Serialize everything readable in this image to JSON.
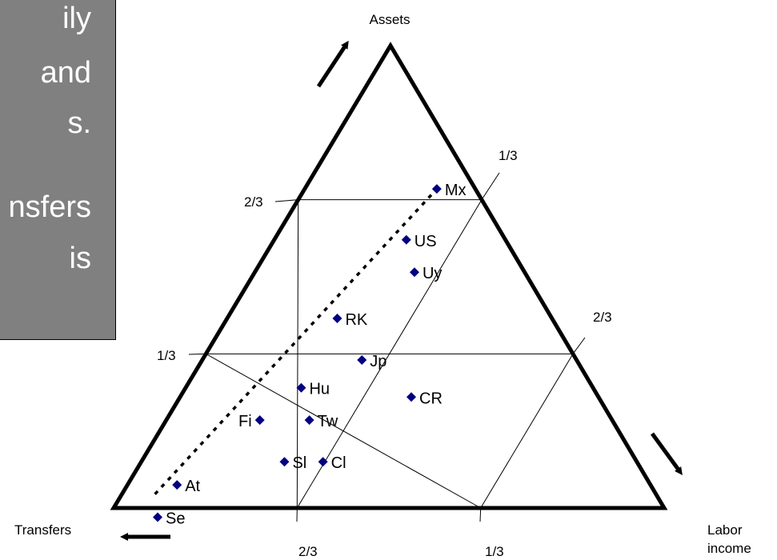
{
  "text_box": {
    "lines": [
      "ily",
      "and",
      "s.",
      "",
      "nsfers",
      "is"
    ]
  },
  "chart_data": {
    "type": "ternary-scatter",
    "vertex_labels": {
      "top": "Assets",
      "bottom_left": "Transfers",
      "bottom_right": "Labor income"
    },
    "tick_labels": {
      "left_edge": [
        "2/3",
        "1/3"
      ],
      "right_edge": [
        "1/3",
        "2/3"
      ],
      "bottom_edge": [
        "2/3",
        "1/3"
      ]
    },
    "grid_fractions": [
      0.3333,
      0.6667
    ],
    "points": [
      {
        "label": "Mx",
        "assets": 0.69,
        "transfers": 0.07,
        "labor": 0.24
      },
      {
        "label": "US",
        "assets": 0.58,
        "transfers": 0.18,
        "labor": 0.24
      },
      {
        "label": "Uy",
        "assets": 0.51,
        "transfers": 0.2,
        "labor": 0.29
      },
      {
        "label": "RK",
        "assets": 0.41,
        "transfers": 0.39,
        "labor": 0.2
      },
      {
        "label": "Jp",
        "assets": 0.32,
        "transfers": 0.39,
        "labor": 0.29
      },
      {
        "label": "Hu",
        "assets": 0.26,
        "transfers": 0.53,
        "labor": 0.21
      },
      {
        "label": "CR",
        "assets": 0.24,
        "transfers": 0.34,
        "labor": 0.42
      },
      {
        "label": "Fi",
        "assets": 0.19,
        "transfers": 0.64,
        "labor": 0.17
      },
      {
        "label": "Tw",
        "assets": 0.19,
        "transfers": 0.55,
        "labor": 0.26
      },
      {
        "label": "Sl",
        "assets": 0.1,
        "transfers": 0.64,
        "labor": 0.26
      },
      {
        "label": "Cl",
        "assets": 0.1,
        "transfers": 0.57,
        "labor": 0.33
      },
      {
        "label": "At",
        "assets": 0.05,
        "transfers": 0.86,
        "labor": 0.09
      },
      {
        "label": "Se",
        "assets": -0.02,
        "transfers": 0.93,
        "labor": 0.09
      }
    ],
    "trend_line": {
      "from": {
        "assets": 0.03,
        "transfers": 0.91,
        "labor": 0.06
      },
      "to": {
        "assets": 0.69,
        "transfers": 0.07,
        "labor": 0.24
      }
    },
    "colors": {
      "marker": "#000080",
      "outline": "#000000",
      "grid": "#000000"
    }
  }
}
